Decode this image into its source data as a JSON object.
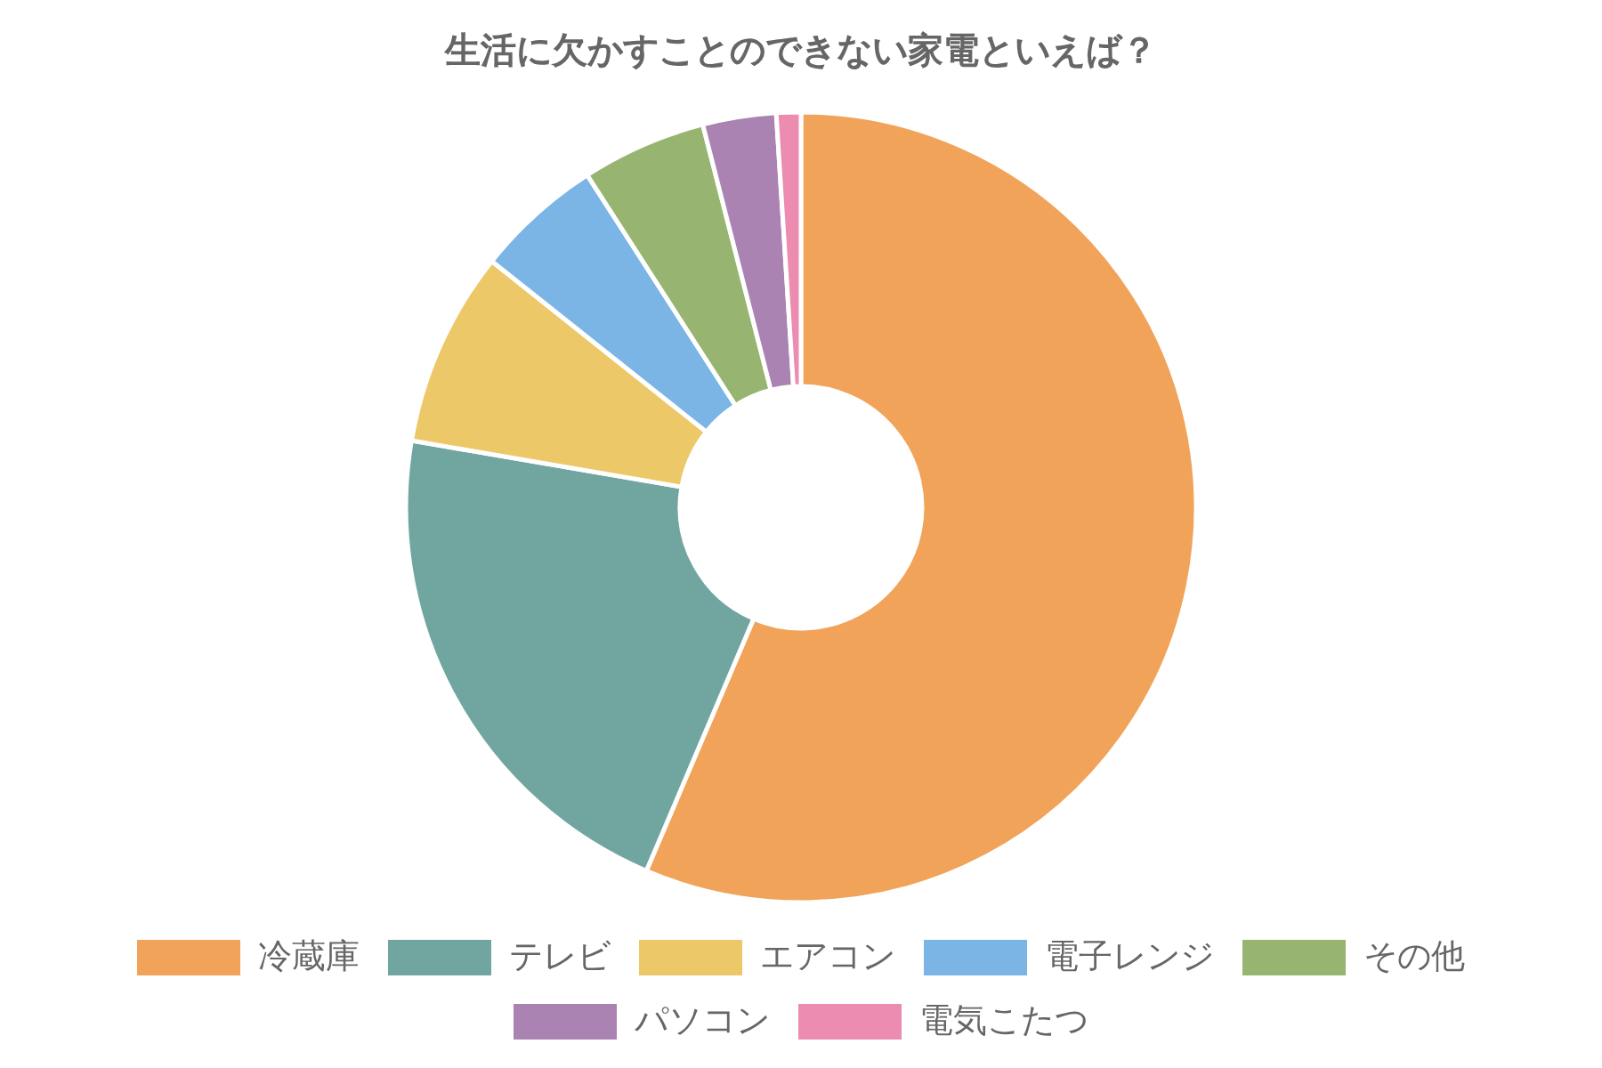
{
  "chart_data": {
    "type": "donut",
    "title": "生活に欠かすことのできない家電といえば？",
    "categories": [
      "冷蔵庫",
      "テレビ",
      "エアコン",
      "電子レンジ",
      "その他",
      "パソコン",
      "電気こたつ"
    ],
    "values": [
      56.4,
      21.3,
      8.0,
      5.2,
      5.1,
      3.0,
      1.0
    ],
    "colors": [
      "#f1a35a",
      "#71a6a0",
      "#ecc869",
      "#7bb5e6",
      "#97b570",
      "#ab83b3",
      "#ec8cb0"
    ],
    "legend": "bottom"
  }
}
